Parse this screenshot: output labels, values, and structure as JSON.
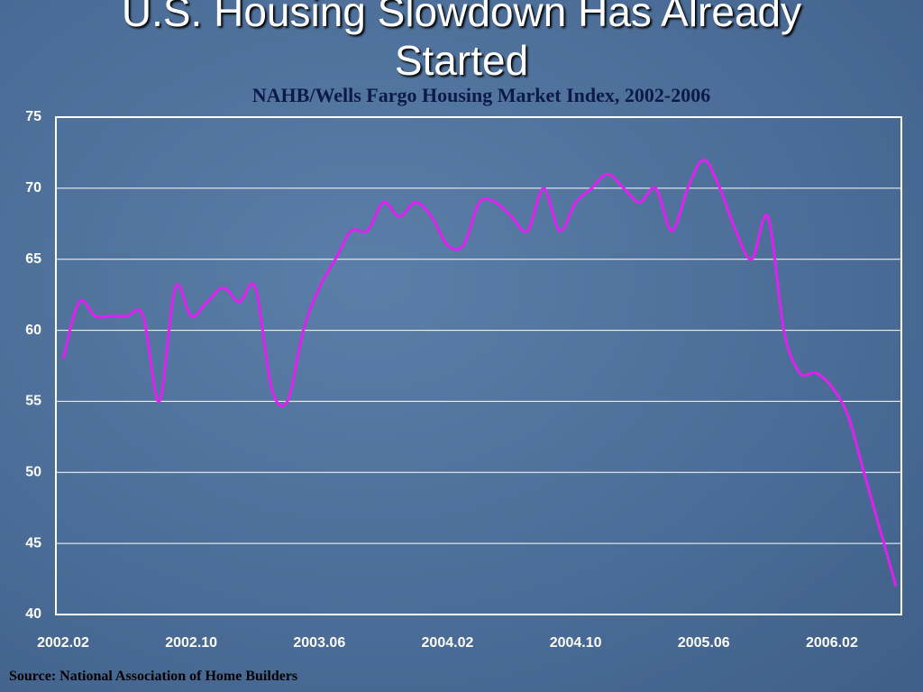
{
  "slide_title": "U.S. Housing Slowdown Has Already Started",
  "source": "Source: National Association of Home Builders",
  "chart_data": {
    "type": "line",
    "title": "NAHB/Wells Fargo Housing Market Index, 2002-2006",
    "categories": [
      "2002.02",
      null,
      null,
      null,
      null,
      null,
      null,
      null,
      "2002.10",
      null,
      null,
      null,
      null,
      null,
      null,
      null,
      "2003.06",
      null,
      null,
      null,
      null,
      null,
      null,
      null,
      "2004.02",
      null,
      null,
      null,
      null,
      null,
      null,
      null,
      "2004.10",
      null,
      null,
      null,
      null,
      null,
      null,
      null,
      "2005.06",
      null,
      null,
      null,
      null,
      null,
      null,
      null,
      "2006.02",
      null,
      null,
      null,
      null
    ],
    "series": [
      {
        "name": "Housing Market Index",
        "color": "#e020f0",
        "values": [
          58,
          62,
          61,
          61,
          61,
          61,
          55,
          63,
          61,
          62,
          63,
          62,
          63,
          56,
          55,
          60,
          63,
          65,
          67,
          67,
          69,
          68,
          69,
          68,
          66,
          66,
          69,
          69,
          68,
          67,
          70,
          67,
          69,
          70,
          71,
          70,
          69,
          70,
          67,
          70,
          72,
          70,
          67,
          65,
          68,
          60,
          57,
          57,
          56,
          54,
          50,
          46,
          42
        ]
      }
    ],
    "ylim": [
      40,
      75
    ],
    "yticks": [
      40,
      45,
      50,
      55,
      60,
      65,
      70,
      75
    ],
    "grid": true
  }
}
